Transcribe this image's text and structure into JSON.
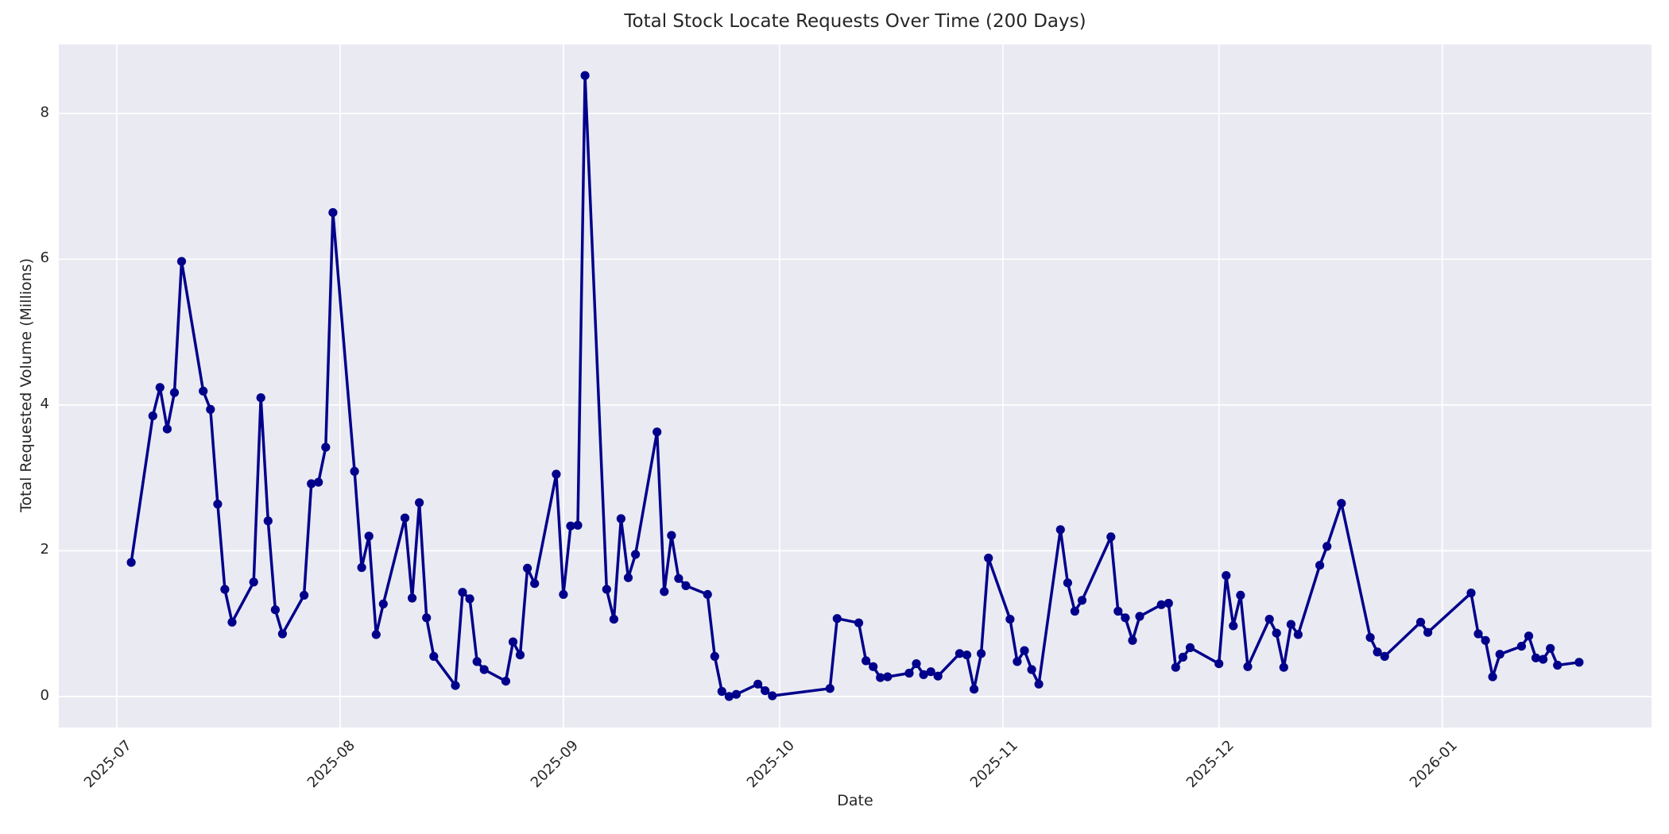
{
  "chart_data": {
    "type": "line",
    "title": "Total Stock Locate Requests Over Time (200 Days)",
    "xlabel": "Date",
    "ylabel": "Total Requested Volume (Millions)",
    "series_name": "total_requested_volume_millions",
    "dates": [
      "2025-07-03",
      "2025-07-06",
      "2025-07-07",
      "2025-07-08",
      "2025-07-09",
      "2025-07-10",
      "2025-07-13",
      "2025-07-14",
      "2025-07-15",
      "2025-07-16",
      "2025-07-17",
      "2025-07-20",
      "2025-07-21",
      "2025-07-22",
      "2025-07-23",
      "2025-07-24",
      "2025-07-27",
      "2025-07-28",
      "2025-07-29",
      "2025-07-30",
      "2025-07-31",
      "2025-08-03",
      "2025-08-04",
      "2025-08-05",
      "2025-08-06",
      "2025-08-07",
      "2025-08-10",
      "2025-08-11",
      "2025-08-12",
      "2025-08-13",
      "2025-08-14",
      "2025-08-17",
      "2025-08-18",
      "2025-08-19",
      "2025-08-20",
      "2025-08-21",
      "2025-08-24",
      "2025-08-25",
      "2025-08-26",
      "2025-08-27",
      "2025-08-28",
      "2025-08-31",
      "2025-09-01",
      "2025-09-02",
      "2025-09-03",
      "2025-09-04",
      "2025-09-07",
      "2025-09-08",
      "2025-09-09",
      "2025-09-10",
      "2025-09-11",
      "2025-09-14",
      "2025-09-15",
      "2025-09-16",
      "2025-09-17",
      "2025-09-18",
      "2025-09-21",
      "2025-09-22",
      "2025-09-23",
      "2025-09-24",
      "2025-09-25",
      "2025-09-28",
      "2025-09-29",
      "2025-09-30",
      "2025-10-08",
      "2025-10-09",
      "2025-10-12",
      "2025-10-13",
      "2025-10-14",
      "2025-10-15",
      "2025-10-16",
      "2025-10-19",
      "2025-10-20",
      "2025-10-21",
      "2025-10-22",
      "2025-10-23",
      "2025-10-26",
      "2025-10-27",
      "2025-10-28",
      "2025-10-29",
      "2025-10-30",
      "2025-11-02",
      "2025-11-03",
      "2025-11-04",
      "2025-11-05",
      "2025-11-06",
      "2025-11-09",
      "2025-11-10",
      "2025-11-11",
      "2025-11-12",
      "2025-11-16",
      "2025-11-17",
      "2025-11-18",
      "2025-11-19",
      "2025-11-20",
      "2025-11-23",
      "2025-11-24",
      "2025-11-25",
      "2025-11-26",
      "2025-11-27",
      "2025-12-01",
      "2025-12-02",
      "2025-12-03",
      "2025-12-04",
      "2025-12-05",
      "2025-12-08",
      "2025-12-09",
      "2025-12-10",
      "2025-12-11",
      "2025-12-12",
      "2025-12-15",
      "2025-12-16",
      "2025-12-18",
      "2025-12-22",
      "2025-12-23",
      "2025-12-24",
      "2025-12-29",
      "2025-12-30",
      "2026-01-05",
      "2026-01-06",
      "2026-01-07",
      "2026-01-08",
      "2026-01-09",
      "2026-01-12",
      "2026-01-13",
      "2026-01-14",
      "2026-01-15",
      "2026-01-16",
      "2026-01-17",
      "2026-01-20"
    ],
    "values": [
      1.84,
      3.85,
      4.24,
      3.67,
      4.17,
      5.97,
      4.19,
      3.94,
      2.64,
      1.47,
      1.02,
      1.57,
      4.1,
      2.41,
      1.19,
      0.86,
      1.39,
      2.92,
      2.94,
      3.42,
      6.64,
      3.09,
      1.77,
      2.2,
      0.85,
      1.27,
      2.45,
      1.35,
      2.66,
      1.08,
      0.55,
      0.15,
      1.43,
      1.34,
      0.48,
      0.37,
      0.21,
      0.75,
      0.57,
      1.76,
      1.55,
      3.05,
      1.4,
      2.34,
      2.35,
      8.52,
      1.47,
      1.06,
      2.44,
      1.63,
      1.95,
      3.63,
      1.44,
      2.21,
      1.62,
      1.52,
      1.4,
      0.55,
      0.07,
      0.0,
      0.03,
      0.17,
      0.08,
      0.01,
      0.11,
      1.07,
      1.01,
      0.49,
      0.41,
      0.26,
      0.27,
      0.32,
      0.45,
      0.3,
      0.34,
      0.28,
      0.59,
      0.57,
      0.1,
      0.59,
      1.9,
      1.06,
      0.48,
      0.63,
      0.37,
      0.17,
      2.29,
      1.56,
      1.17,
      1.32,
      2.19,
      1.17,
      1.08,
      0.77,
      1.1,
      1.26,
      1.28,
      0.4,
      0.54,
      0.67,
      0.45,
      1.66,
      0.97,
      1.39,
      0.41,
      1.06,
      0.87,
      0.4,
      0.99,
      0.85,
      1.8,
      2.06,
      2.65,
      0.81,
      0.61,
      0.55,
      1.02,
      0.88,
      1.42,
      0.86,
      0.77,
      0.27,
      0.58,
      0.69,
      0.83,
      0.53,
      0.51,
      0.66,
      0.43,
      0.47
    ],
    "xticks": [
      "2025-07",
      "2025-08",
      "2025-09",
      "2025-10",
      "2025-11",
      "2025-12",
      "2026-01"
    ],
    "yticks": [
      "0",
      "2",
      "4",
      "6",
      "8"
    ],
    "ylim": [
      -0.43,
      8.95
    ],
    "grid": "on",
    "legend": "none",
    "colors": {
      "line": "#00008B",
      "marker": "#00008B",
      "plot_background": "#EAEAF2",
      "figure_background": "#FFFFFF",
      "gridline": "#FFFFFF",
      "text": "#262626"
    }
  }
}
